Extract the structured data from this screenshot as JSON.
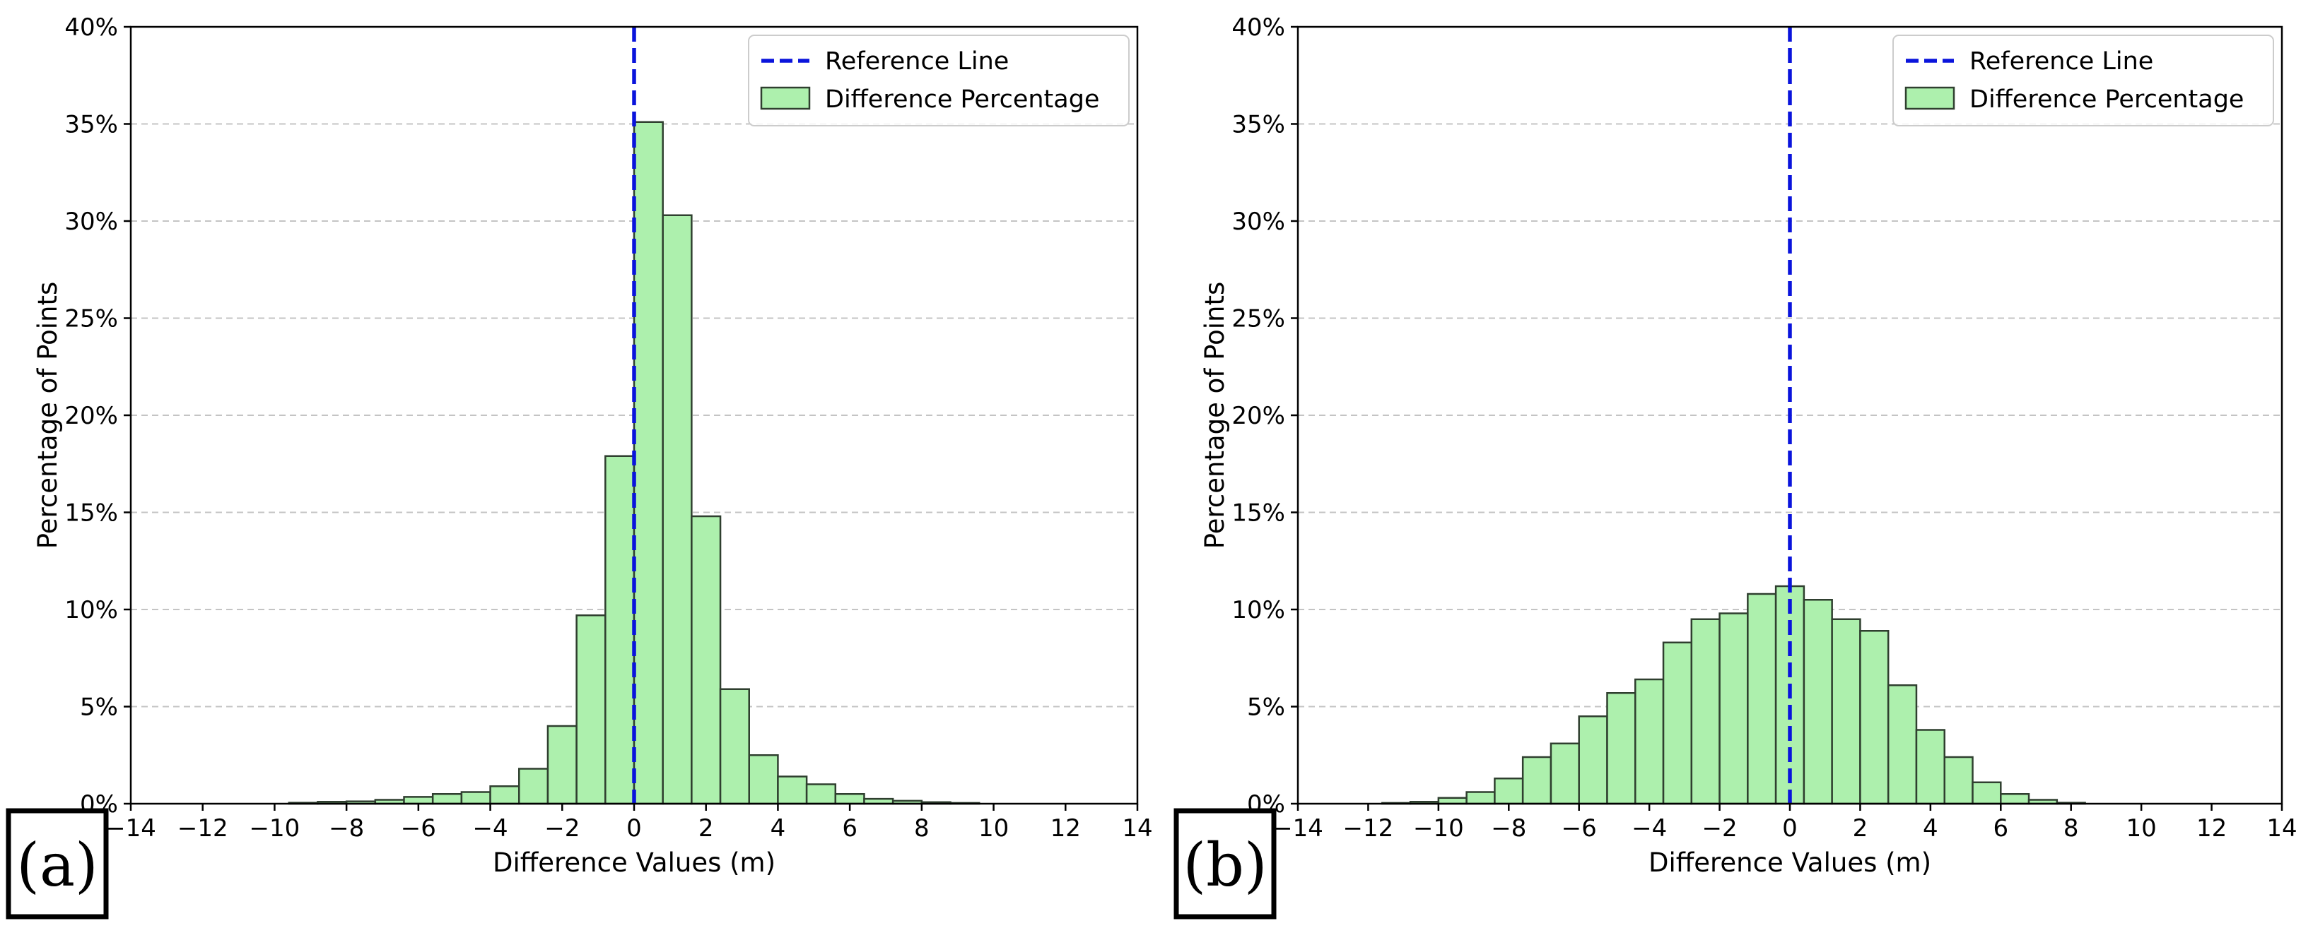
{
  "figure": {
    "panels": [
      "(a)",
      "(b)"
    ]
  },
  "colors": {
    "bar_fill": "#adf0ad",
    "bar_edge": "#2f3f2f",
    "reference_line": "#0a14dc",
    "grid": "#c4c4c4"
  },
  "chart_data": [
    {
      "type": "bar",
      "panel_label": "(a)",
      "title": "",
      "xlabel": "Difference Values (m)",
      "ylabel": "Percentage of Points",
      "xlim": [
        -14,
        14
      ],
      "ylim": [
        0,
        40
      ],
      "xticks": [
        -14,
        -12,
        -10,
        -8,
        -6,
        -4,
        -2,
        0,
        2,
        4,
        6,
        8,
        10,
        12,
        14
      ],
      "xtick_labels": [
        "−14",
        "−12",
        "−10",
        "−8",
        "−6",
        "−4",
        "−2",
        "0",
        "2",
        "4",
        "6",
        "8",
        "10",
        "12",
        "14"
      ],
      "yticks": [
        0,
        5,
        10,
        15,
        20,
        25,
        30,
        35,
        40
      ],
      "ytick_labels": [
        "0%",
        "5%",
        "10%",
        "15%",
        "20%",
        "25%",
        "30%",
        "35%",
        "40%"
      ],
      "grid": "y-dashed",
      "legend_position": "top-right",
      "legend": [
        "Reference Line",
        "Difference Percentage"
      ],
      "reference_line_x": 0,
      "bin_width": 0.8,
      "bins": [
        {
          "x": -9.2,
          "value": 0.05
        },
        {
          "x": -8.4,
          "value": 0.1
        },
        {
          "x": -7.6,
          "value": 0.12
        },
        {
          "x": -6.8,
          "value": 0.2
        },
        {
          "x": -6.0,
          "value": 0.35
        },
        {
          "x": -5.2,
          "value": 0.5
        },
        {
          "x": -4.4,
          "value": 0.6
        },
        {
          "x": -3.6,
          "value": 0.9
        },
        {
          "x": -2.8,
          "value": 1.8
        },
        {
          "x": -2.0,
          "value": 4.0
        },
        {
          "x": -1.2,
          "value": 9.7
        },
        {
          "x": -0.4,
          "value": 17.9
        },
        {
          "x": 0.4,
          "value": 35.1
        },
        {
          "x": 1.2,
          "value": 30.3
        },
        {
          "x": 2.0,
          "value": 14.8
        },
        {
          "x": 2.8,
          "value": 5.9
        },
        {
          "x": 3.6,
          "value": 2.5
        },
        {
          "x": 4.4,
          "value": 1.4
        },
        {
          "x": 5.2,
          "value": 1.0
        },
        {
          "x": 6.0,
          "value": 0.5
        },
        {
          "x": 6.8,
          "value": 0.25
        },
        {
          "x": 7.6,
          "value": 0.15
        },
        {
          "x": 8.4,
          "value": 0.08
        },
        {
          "x": 9.2,
          "value": 0.04
        }
      ]
    },
    {
      "type": "bar",
      "panel_label": "(b)",
      "title": "",
      "xlabel": "Difference Values (m)",
      "ylabel": "Percentage of Points",
      "xlim": [
        -14,
        14
      ],
      "ylim": [
        0,
        40
      ],
      "xticks": [
        -14,
        -12,
        -10,
        -8,
        -6,
        -4,
        -2,
        0,
        2,
        4,
        6,
        8,
        10,
        12,
        14
      ],
      "xtick_labels": [
        "−14",
        "−12",
        "−10",
        "−8",
        "−6",
        "−4",
        "−2",
        "0",
        "2",
        "4",
        "6",
        "8",
        "10",
        "12",
        "14"
      ],
      "yticks": [
        0,
        5,
        10,
        15,
        20,
        25,
        30,
        35,
        40
      ],
      "ytick_labels": [
        "0%",
        "5%",
        "10%",
        "15%",
        "20%",
        "25%",
        "30%",
        "35%",
        "40%"
      ],
      "grid": "y-dashed",
      "legend_position": "top-right",
      "legend": [
        "Reference Line",
        "Difference Percentage"
      ],
      "reference_line_x": 0,
      "bin_width": 0.8,
      "bins": [
        {
          "x": -11.2,
          "value": 0.04
        },
        {
          "x": -10.4,
          "value": 0.1
        },
        {
          "x": -9.6,
          "value": 0.3
        },
        {
          "x": -8.8,
          "value": 0.6
        },
        {
          "x": -8.0,
          "value": 1.3
        },
        {
          "x": -7.2,
          "value": 2.4
        },
        {
          "x": -6.4,
          "value": 3.1
        },
        {
          "x": -5.6,
          "value": 4.5
        },
        {
          "x": -4.8,
          "value": 5.7
        },
        {
          "x": -4.0,
          "value": 6.4
        },
        {
          "x": -3.2,
          "value": 8.3
        },
        {
          "x": -2.4,
          "value": 9.5
        },
        {
          "x": -1.6,
          "value": 9.8
        },
        {
          "x": -0.8,
          "value": 10.8
        },
        {
          "x": 0.0,
          "value": 11.2
        },
        {
          "x": 0.8,
          "value": 10.5
        },
        {
          "x": 1.6,
          "value": 9.5
        },
        {
          "x": 2.4,
          "value": 8.9
        },
        {
          "x": 3.2,
          "value": 6.1
        },
        {
          "x": 4.0,
          "value": 3.8
        },
        {
          "x": 4.8,
          "value": 2.4
        },
        {
          "x": 5.6,
          "value": 1.1
        },
        {
          "x": 6.4,
          "value": 0.5
        },
        {
          "x": 7.2,
          "value": 0.2
        },
        {
          "x": 8.0,
          "value": 0.05
        }
      ]
    }
  ]
}
